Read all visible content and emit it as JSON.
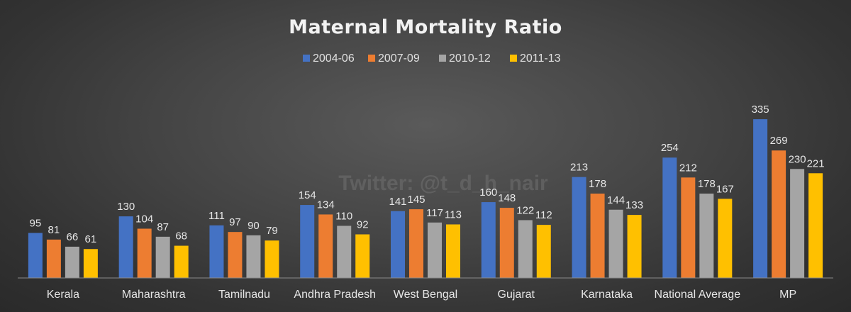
{
  "colors": {
    "background": "#3d3d3d",
    "text": "#e6e6e6",
    "series": [
      "#4472c4",
      "#ed7d31",
      "#a5a5a5",
      "#ffc000"
    ]
  },
  "watermark": "Twitter: @t_d_h_nair",
  "chart_data": {
    "type": "bar",
    "title": "Maternal Mortality Ratio",
    "xlabel": "",
    "ylabel": "",
    "ylim": [
      0,
      350
    ],
    "grid": false,
    "legend_position": "top-center",
    "categories": [
      "Kerala",
      "Maharashtra",
      "Tamilnadu",
      "Andhra Pradesh",
      "West Bengal",
      "Gujarat",
      "Karnataka",
      "National Average",
      "MP"
    ],
    "series": [
      {
        "name": "2004-06",
        "values": [
          95,
          130,
          111,
          154,
          141,
          160,
          213,
          254,
          335
        ]
      },
      {
        "name": "2007-09",
        "values": [
          81,
          104,
          97,
          134,
          145,
          148,
          178,
          212,
          269
        ]
      },
      {
        "name": "2010-12",
        "values": [
          66,
          87,
          90,
          110,
          117,
          122,
          144,
          178,
          230
        ]
      },
      {
        "name": "2011-13",
        "values": [
          61,
          68,
          79,
          92,
          113,
          112,
          133,
          167,
          221
        ]
      }
    ]
  }
}
